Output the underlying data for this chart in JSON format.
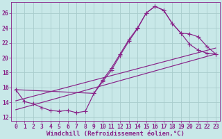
{
  "background_color": "#c8e8e8",
  "grid_color": "#a8cccc",
  "line_color": "#882288",
  "xlabel": "Windchill (Refroidissement éolien,°C)",
  "xlabel_fontsize": 6.5,
  "tick_fontsize": 5.8,
  "xlim": [
    -0.5,
    23.5
  ],
  "ylim": [
    11.5,
    27.5
  ],
  "yticks": [
    12,
    14,
    16,
    18,
    20,
    22,
    24,
    26
  ],
  "xticks": [
    0,
    1,
    2,
    3,
    4,
    5,
    6,
    7,
    8,
    9,
    10,
    11,
    12,
    13,
    14,
    15,
    16,
    17,
    18,
    19,
    20,
    21,
    22,
    23
  ],
  "main_x": [
    0,
    1,
    2,
    3,
    4,
    5,
    6,
    7,
    8,
    9,
    10,
    11,
    12,
    13,
    14,
    15,
    16,
    17,
    18,
    19,
    20,
    21,
    22,
    23
  ],
  "main_y": [
    15.7,
    14.1,
    13.8,
    13.3,
    12.9,
    12.8,
    12.9,
    12.6,
    12.8,
    15.2,
    16.8,
    18.3,
    20.3,
    22.2,
    23.9,
    26.0,
    26.9,
    26.4,
    24.6,
    23.3,
    21.8,
    21.0,
    20.6,
    20.5
  ],
  "upper_x": [
    0,
    9,
    10,
    11,
    12,
    13,
    14,
    15,
    16,
    17,
    18,
    19,
    20,
    21,
    22,
    23
  ],
  "upper_y": [
    15.7,
    15.2,
    17.0,
    18.6,
    20.5,
    22.4,
    24.0,
    26.0,
    26.9,
    26.4,
    24.6,
    23.3,
    23.2,
    22.8,
    21.5,
    20.5
  ],
  "trend1_x": [
    0,
    23
  ],
  "trend1_y": [
    13.0,
    20.5
  ],
  "trend2_x": [
    0,
    23
  ],
  "trend2_y": [
    14.2,
    21.3
  ]
}
